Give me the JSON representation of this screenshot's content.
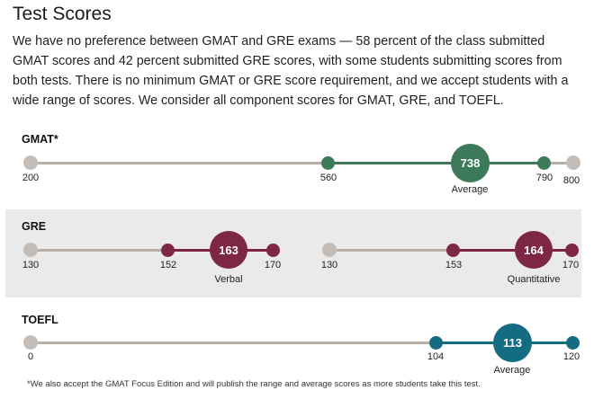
{
  "header": {
    "title": "Test Scores",
    "intro": "We have no preference between GMAT and GRE exams — 58 percent of the class submitted GMAT scores and 42 percent submitted GRE scores, with some students submitting scores from both tests. There is no minimum GMAT or GRE score requirement, and we accept students with a wide range of scores. We consider all component scores for GMAT, GRE, and TOEFL."
  },
  "colors": {
    "track_grey": "#b7aea8",
    "dot_grey": "#c4bcb6",
    "gmat": "#3d7a5a",
    "gre": "#7d2646",
    "toefl": "#136c82",
    "gre_band": "#eaeaea"
  },
  "gmat": {
    "label": "GMAT*",
    "min_label": "200",
    "low_label": "560",
    "high_label": "790",
    "max_label": "800",
    "average_label": "738",
    "caption": "Average",
    "values": {
      "min": 200,
      "low": 560,
      "avg": 738,
      "high": 790,
      "max": 800
    }
  },
  "gre": {
    "label": "GRE",
    "verbal": {
      "min_label": "130",
      "low_label": "152",
      "high_label": "170",
      "average_label": "163",
      "caption": "Verbal",
      "values": {
        "min": 130,
        "low": 152,
        "avg": 163,
        "high": 170,
        "max": 170
      }
    },
    "quant": {
      "min_label": "130",
      "low_label": "153",
      "high_label": "170",
      "average_label": "164",
      "caption": "Quantitative",
      "values": {
        "min": 130,
        "low": 153,
        "avg": 164,
        "high": 170,
        "max": 170
      }
    }
  },
  "toefl": {
    "label": "TOEFL",
    "min_label": "0",
    "low_label": "104",
    "high_label": "120",
    "average_label": "113",
    "caption": "Average",
    "values": {
      "min": 0,
      "low": 104,
      "avg": 113,
      "high": 120,
      "max": 120
    }
  },
  "footnote": "*We also accept the GMAT Focus Edition and will publish the range and average scores as more students take this test."
}
